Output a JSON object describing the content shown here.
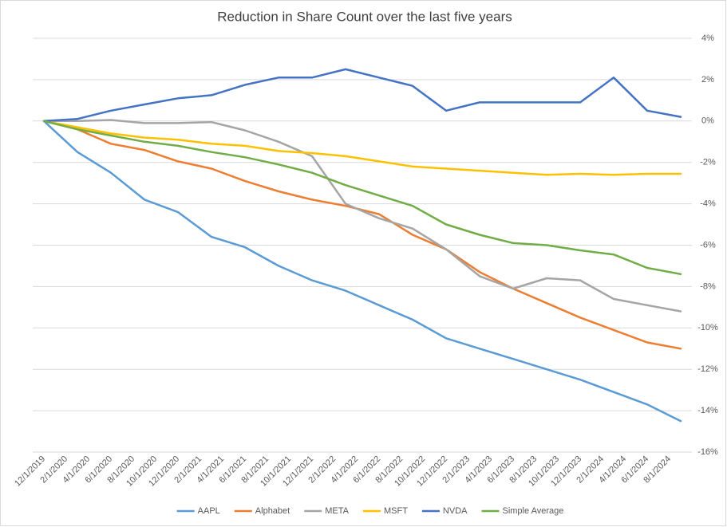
{
  "chart_data": {
    "type": "line",
    "title": "Reduction in Share Count over the last five years",
    "x": [
      "12/1/2019",
      "3/1/2020",
      "6/1/2020",
      "9/1/2020",
      "12/1/2020",
      "3/1/2021",
      "6/1/2021",
      "9/1/2021",
      "12/1/2021",
      "3/1/2022",
      "6/1/2022",
      "9/1/2022",
      "12/1/2022",
      "3/1/2023",
      "6/1/2023",
      "9/1/2023",
      "12/1/2023",
      "3/1/2024",
      "6/1/2024",
      "9/1/2024"
    ],
    "xlim": [
      "11/1/2019",
      "10/1/2024"
    ],
    "xticks": [
      "12/1/2019",
      "2/1/2020",
      "4/1/2020",
      "6/1/2020",
      "8/1/2020",
      "10/1/2020",
      "12/1/2020",
      "2/1/2021",
      "4/1/2021",
      "6/1/2021",
      "8/1/2021",
      "10/1/2021",
      "12/1/2021",
      "2/1/2022",
      "4/1/2022",
      "6/1/2022",
      "8/1/2022",
      "10/1/2022",
      "12/1/2022",
      "2/1/2023",
      "4/1/2023",
      "6/1/2023",
      "8/1/2023",
      "10/1/2023",
      "12/1/2023",
      "2/1/2024",
      "4/1/2024",
      "6/1/2024",
      "8/1/2024"
    ],
    "ylim": [
      -16,
      4
    ],
    "yticks": [
      {
        "value": 4,
        "label": "4%"
      },
      {
        "value": 2,
        "label": "2%"
      },
      {
        "value": 0,
        "label": "0%"
      },
      {
        "value": -2,
        "label": "-2%"
      },
      {
        "value": -4,
        "label": "-4%"
      },
      {
        "value": -6,
        "label": "-6%"
      },
      {
        "value": -8,
        "label": "-8%"
      },
      {
        "value": -10,
        "label": "-10%"
      },
      {
        "value": -12,
        "label": "-12%"
      },
      {
        "value": -14,
        "label": "-14%"
      },
      {
        "value": -16,
        "label": "-16%"
      }
    ],
    "grid": true,
    "legend": "bottom",
    "series": [
      {
        "name": "AAPL",
        "color": "#5b9bd5",
        "values": [
          0,
          -1.5,
          -2.5,
          -3.8,
          -4.4,
          -5.6,
          -6.1,
          -7.0,
          -7.7,
          -8.2,
          -8.9,
          -9.6,
          -10.5,
          -11.0,
          -11.5,
          -12.0,
          -12.5,
          -13.1,
          -13.7,
          -14.5
        ]
      },
      {
        "name": "Alphabet",
        "color": "#ed7d31",
        "values": [
          0,
          -0.4,
          -1.1,
          -1.4,
          -1.95,
          -2.3,
          -2.9,
          -3.4,
          -3.8,
          -4.1,
          -4.5,
          -5.5,
          -6.2,
          -7.3,
          -8.1,
          -8.8,
          -9.5,
          -10.1,
          -10.7,
          -11.0
        ]
      },
      {
        "name": "META",
        "color": "#a5a5a5",
        "values": [
          0,
          0,
          0.05,
          -0.1,
          -0.1,
          -0.05,
          -0.45,
          -1.0,
          -1.7,
          -4.0,
          -4.7,
          -5.2,
          -6.2,
          -7.5,
          -8.1,
          -7.6,
          -7.7,
          -8.6,
          -8.9,
          -9.2
        ]
      },
      {
        "name": "MSFT",
        "color": "#ffc000",
        "values": [
          0,
          -0.3,
          -0.6,
          -0.8,
          -0.9,
          -1.1,
          -1.2,
          -1.45,
          -1.55,
          -1.7,
          -1.95,
          -2.2,
          -2.3,
          -2.4,
          -2.5,
          -2.6,
          -2.55,
          -2.6,
          -2.55,
          -2.55
        ]
      },
      {
        "name": "NVDA",
        "color": "#4472c4",
        "values": [
          0,
          0.1,
          0.5,
          0.8,
          1.1,
          1.25,
          1.75,
          2.1,
          2.1,
          2.5,
          2.1,
          1.7,
          0.5,
          0.9,
          0.9,
          0.9,
          0.9,
          2.1,
          0.5,
          0.2
        ]
      },
      {
        "name": "Simple Average",
        "color": "#70ad47",
        "values": [
          0,
          -0.4,
          -0.7,
          -1.0,
          -1.2,
          -1.5,
          -1.75,
          -2.1,
          -2.5,
          -3.1,
          -3.6,
          -4.1,
          -5.0,
          -5.5,
          -5.9,
          -6.0,
          -6.25,
          -6.45,
          -7.1,
          -7.4
        ]
      }
    ]
  }
}
